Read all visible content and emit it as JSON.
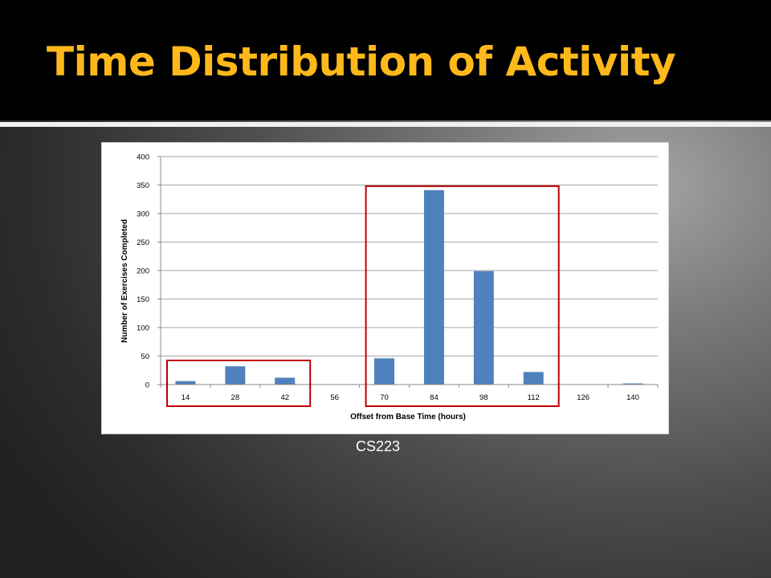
{
  "slide": {
    "title": "Time Distribution of Activity",
    "caption": "CS223"
  },
  "colors": {
    "title": "#ffb81c",
    "bar": "#4f81bd",
    "highlight": "#c00000",
    "gridline": "#a6a6a6"
  },
  "chart_data": {
    "type": "bar",
    "title": "",
    "xlabel": "Offset from Base Time (hours)",
    "ylabel": "Number of Exercises Completed",
    "categories": [
      "14",
      "28",
      "42",
      "56",
      "70",
      "84",
      "98",
      "112",
      "126",
      "140"
    ],
    "values": [
      6,
      32,
      12,
      0,
      46,
      341,
      199,
      22,
      0,
      2
    ],
    "ylim": [
      0,
      400
    ],
    "yticks": [
      0,
      50,
      100,
      150,
      200,
      250,
      300,
      350,
      400
    ],
    "grid": true,
    "legend": "none",
    "highlights": [
      {
        "categories": [
          "14",
          "28",
          "42"
        ]
      },
      {
        "categories": [
          "70",
          "84",
          "98",
          "112"
        ]
      }
    ]
  }
}
